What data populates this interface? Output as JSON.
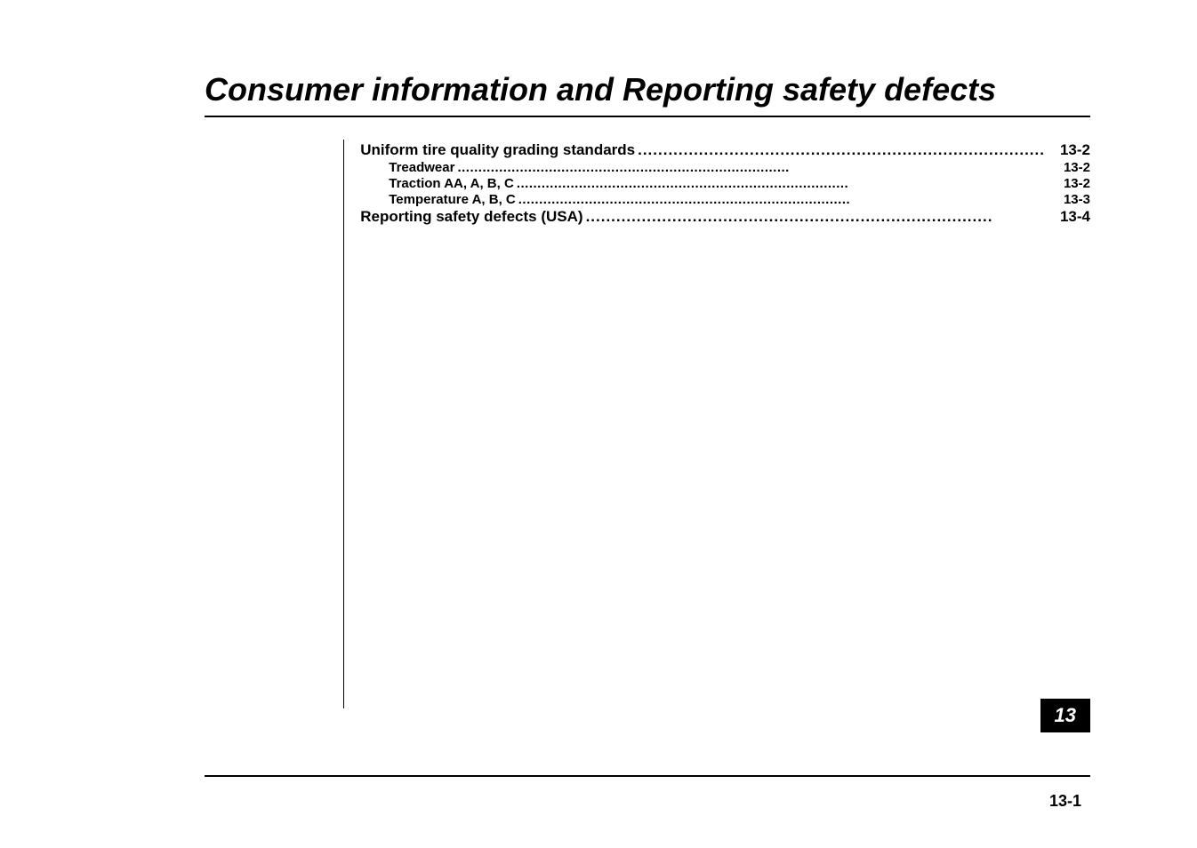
{
  "title": "Consumer information and Reporting safety defects",
  "toc": [
    {
      "level": 1,
      "label": "Uniform tire quality grading standards",
      "page": "13-2"
    },
    {
      "level": 2,
      "label": "Treadwear",
      "page": "13-2"
    },
    {
      "level": 2,
      "label": "Traction AA, A, B, C",
      "page": "13-2"
    },
    {
      "level": 2,
      "label": "Temperature A, B, C",
      "page": "13-3"
    },
    {
      "level": 1,
      "label": "Reporting safety defects (USA)",
      "page": "13-4"
    }
  ],
  "chapter_tab": "13",
  "page_number": "13-1",
  "leader_char": "."
}
